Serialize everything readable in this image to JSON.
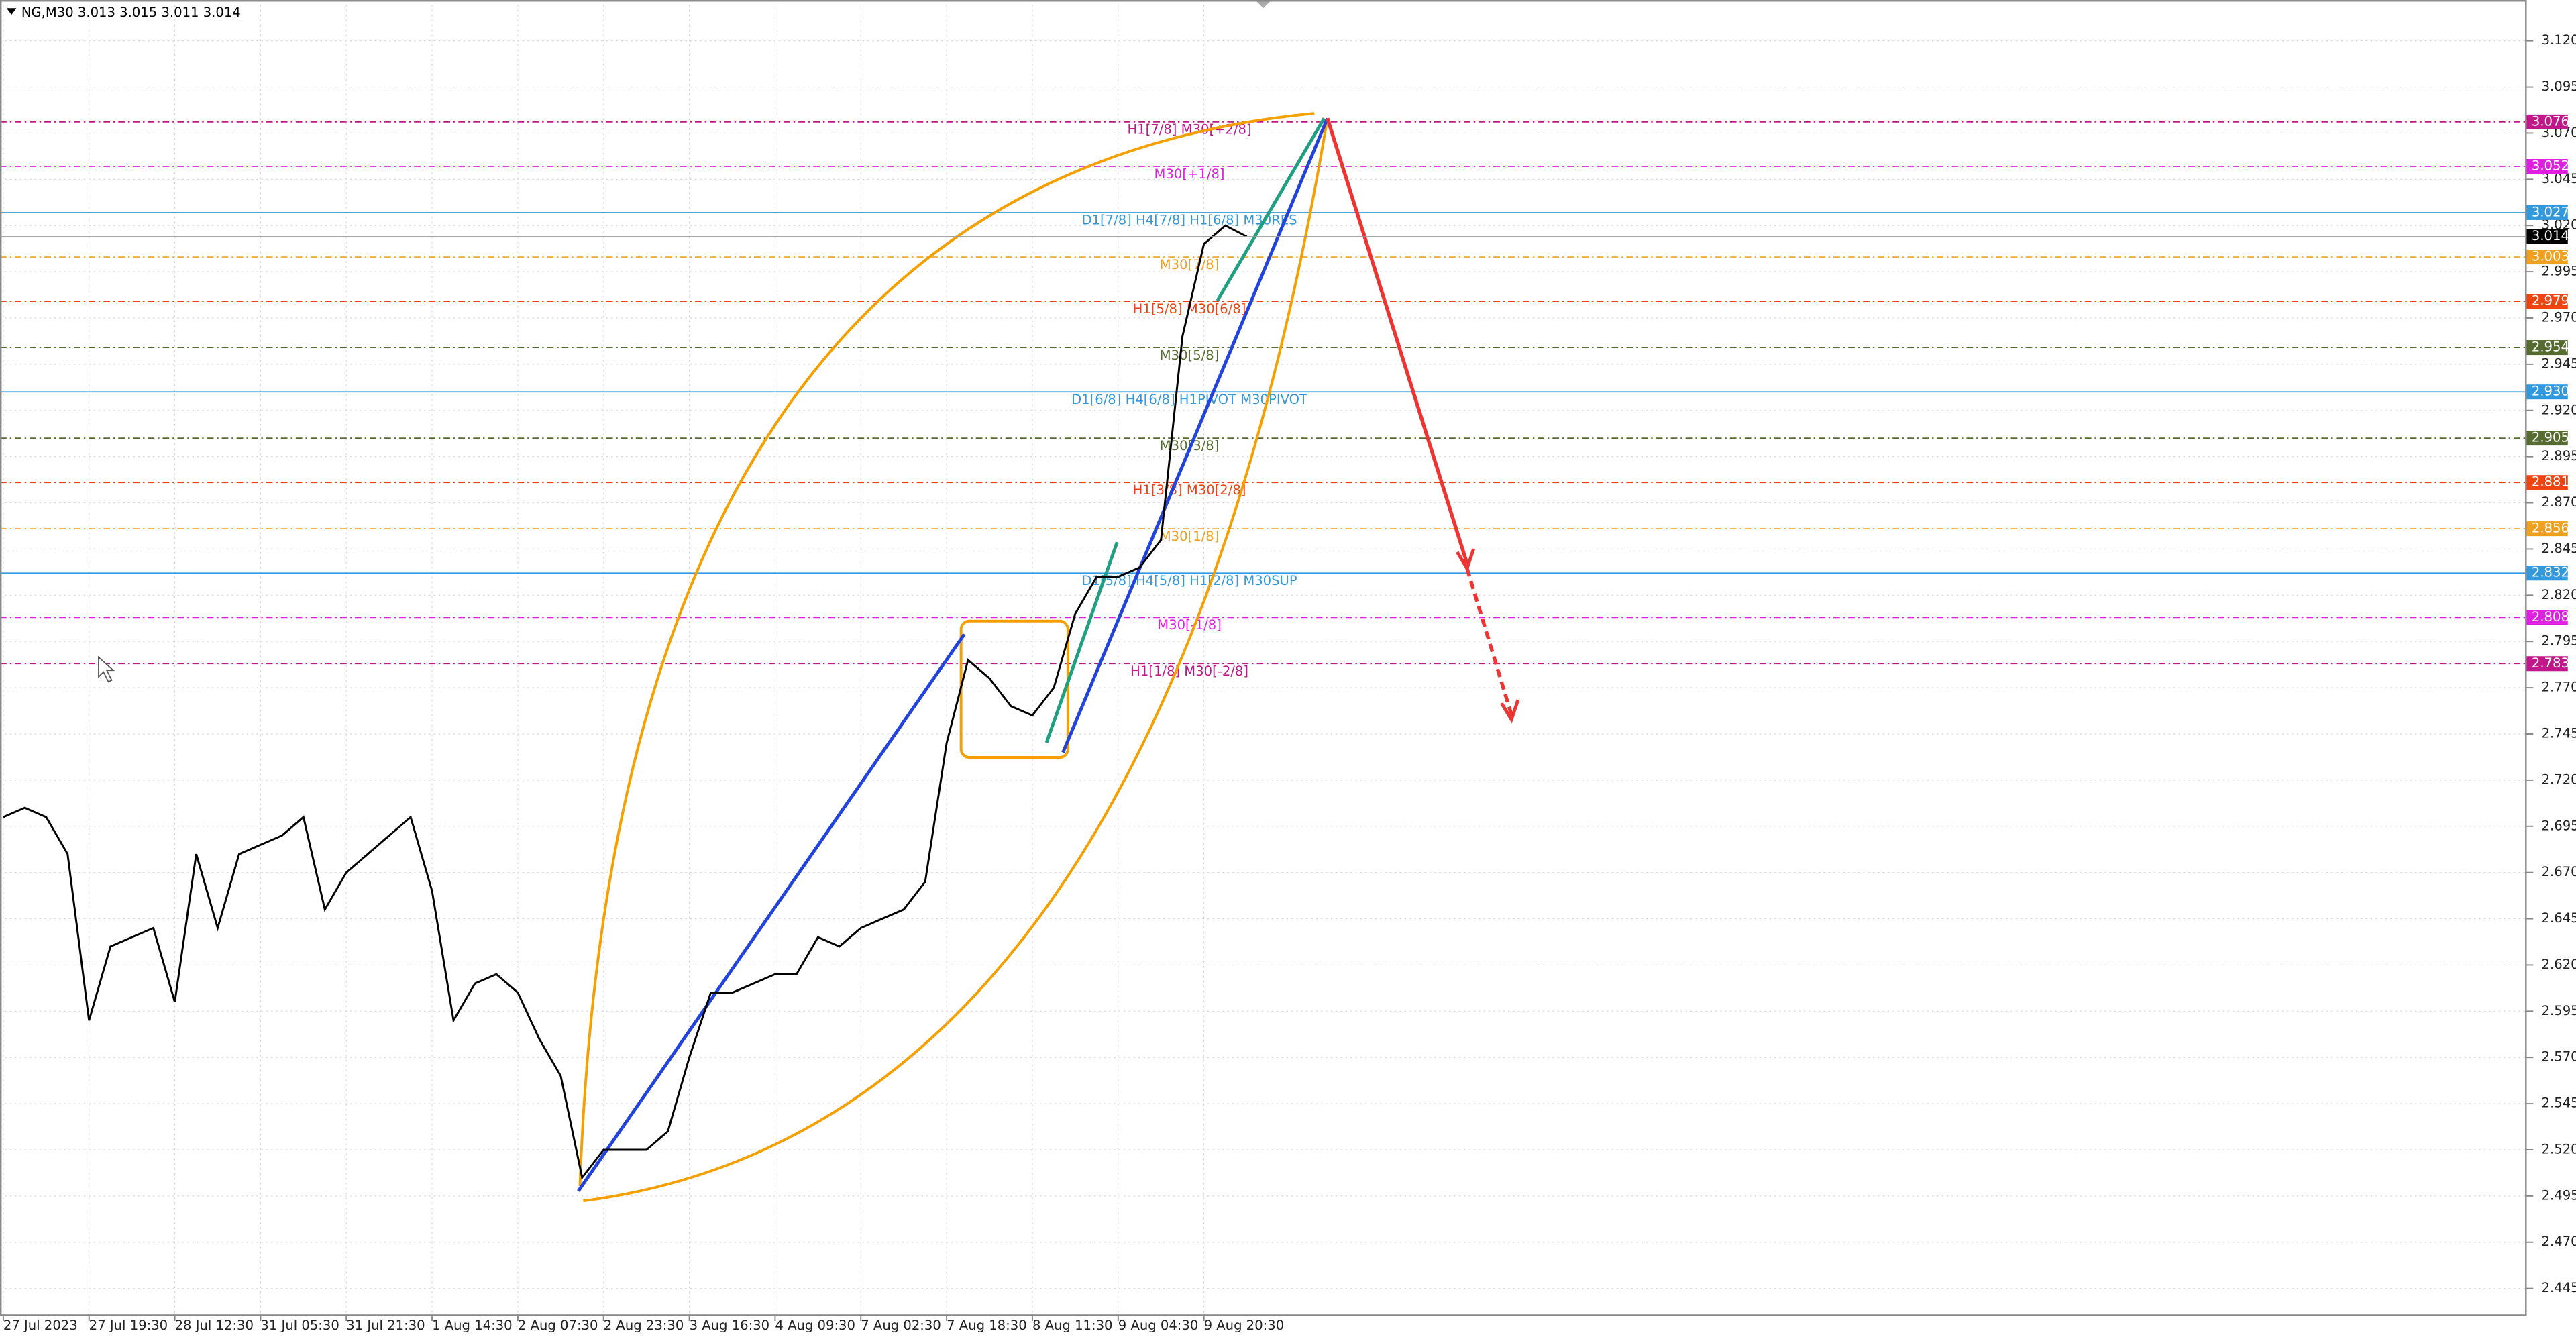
{
  "chart_data": {
    "type": "line",
    "title": "NG,M30  3.013 3.015 3.011 3.014",
    "color": "#000000",
    "categories": [
      "27 Jul 2023",
      null,
      null,
      null,
      "27 Jul 19:30",
      null,
      null,
      null,
      "28 Jul 12:30",
      null,
      null,
      null,
      "31 Jul 05:30",
      null,
      null,
      null,
      "31 Jul 21:30",
      null,
      null,
      null,
      "1 Aug 14:30",
      null,
      null,
      null,
      "2 Aug 07:30",
      null,
      null,
      null,
      "2 Aug 23:30",
      null,
      null,
      null,
      "3 Aug 16:30",
      null,
      null,
      null,
      "4 Aug 09:30",
      null,
      null,
      null,
      "7 Aug 02:30",
      null,
      null,
      null,
      "7 Aug 18:30",
      null,
      null,
      null,
      "8 Aug 11:30",
      null,
      null,
      null,
      "9 Aug 04:30",
      null,
      null,
      null,
      "9 Aug 20:30",
      null,
      null
    ],
    "values": [
      2.7,
      2.705,
      2.7,
      2.68,
      2.59,
      2.63,
      2.635,
      2.64,
      2.6,
      2.68,
      2.64,
      2.68,
      2.685,
      2.69,
      2.7,
      2.65,
      2.67,
      2.68,
      2.69,
      2.7,
      2.66,
      2.59,
      2.61,
      2.615,
      2.605,
      2.58,
      2.56,
      2.505,
      2.52,
      2.52,
      2.52,
      2.53,
      2.57,
      2.605,
      2.605,
      2.61,
      2.615,
      2.615,
      2.635,
      2.63,
      2.64,
      2.645,
      2.65,
      2.665,
      2.74,
      2.785,
      2.775,
      2.76,
      2.755,
      2.77,
      2.81,
      2.83,
      2.83,
      2.835,
      2.85,
      2.96,
      3.01,
      3.02,
      3.014
    ],
    "ylim": [
      2.431,
      3.142
    ],
    "yticks": [
      {
        "value": 2.445,
        "label": "2.445"
      },
      {
        "value": 2.47,
        "label": "2.470"
      },
      {
        "value": 2.495,
        "label": "2.495"
      },
      {
        "value": 2.52,
        "label": "2.520"
      },
      {
        "value": 2.545,
        "label": "2.545"
      },
      {
        "value": 2.57,
        "label": "2.570"
      },
      {
        "value": 2.595,
        "label": "2.595"
      },
      {
        "value": 2.62,
        "label": "2.620"
      },
      {
        "value": 2.645,
        "label": "2.645"
      },
      {
        "value": 2.67,
        "label": "2.670"
      },
      {
        "value": 2.695,
        "label": "2.695"
      },
      {
        "value": 2.72,
        "label": "2.720"
      },
      {
        "value": 2.745,
        "label": "2.745"
      },
      {
        "value": 2.77,
        "label": "2.770"
      },
      {
        "value": 2.795,
        "label": "2.795"
      },
      {
        "value": 2.82,
        "label": "2.820"
      },
      {
        "value": 2.845,
        "label": "2.845"
      },
      {
        "value": 2.87,
        "label": "2.870"
      },
      {
        "value": 2.895,
        "label": "2.895"
      },
      {
        "value": 2.92,
        "label": "2.920"
      },
      {
        "value": 2.945,
        "label": "2.945"
      },
      {
        "value": 2.97,
        "label": "2.970"
      },
      {
        "value": 2.995,
        "label": "2.995"
      },
      {
        "value": 3.02,
        "label": "3.020"
      },
      {
        "value": 3.045,
        "label": "3.045"
      },
      {
        "value": 3.07,
        "label": "3.070"
      },
      {
        "value": 3.095,
        "label": "3.095"
      },
      {
        "value": 3.12,
        "label": "3.120"
      }
    ],
    "grid": true,
    "current_price": {
      "value": 3.014,
      "label": "3.014"
    },
    "levels": [
      {
        "value": 3.076,
        "price_label": "3.076",
        "text": "H1[7/8] M30[+2/8]",
        "color": "#c0188a"
      },
      {
        "value": 3.052,
        "price_label": "3.052",
        "text": "M30[+1/8]",
        "color": "#e020e0"
      },
      {
        "value": 3.027,
        "price_label": "3.027",
        "text": "D1[7/8] H4[7/8] H1[6/8] M30RES",
        "color": "#3399dd"
      },
      {
        "value": 3.003,
        "price_label": "3.003",
        "text": "M30[7/8]",
        "color": "#f0a020"
      },
      {
        "value": 2.979,
        "price_label": "2.979",
        "text": "H1[5/8] M30[6/8]",
        "color": "#ee4411"
      },
      {
        "value": 2.954,
        "price_label": "2.954",
        "text": "M30[5/8]",
        "color": "#556b2f"
      },
      {
        "value": 2.93,
        "price_label": "2.930",
        "text": "D1[6/8] H4[6/8] H1PIVOT M30PIVOT",
        "color": "#3399dd"
      },
      {
        "value": 2.905,
        "price_label": "2.905",
        "text": "M30[3/8]",
        "color": "#556b2f"
      },
      {
        "value": 2.881,
        "price_label": "2.881",
        "text": "H1[3/8] M30[2/8]",
        "color": "#ee4411"
      },
      {
        "value": 2.856,
        "price_label": "2.856",
        "text": "M30[1/8]",
        "color": "#f0a020"
      },
      {
        "value": 2.832,
        "price_label": "2.832",
        "text": "D1[5/8] H4[5/8] H1[2/8] M30SUP",
        "color": "#3399dd"
      },
      {
        "value": 2.808,
        "price_label": "2.808",
        "text": "M30[-1/8]",
        "color": "#e020e0"
      },
      {
        "value": 2.783,
        "price_label": "2.783",
        "text": "H1[1/8] M30[-2/8]",
        "color": "#c0188a"
      }
    ]
  }
}
